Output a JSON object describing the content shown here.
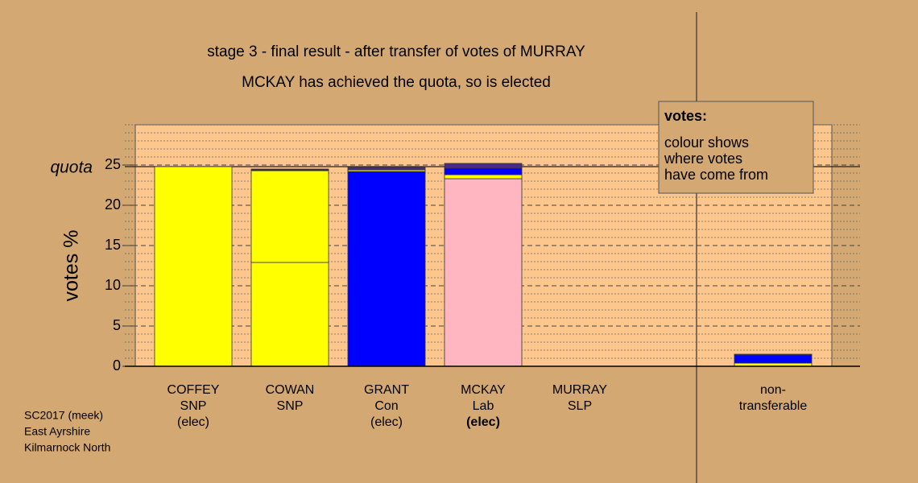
{
  "chart_data": {
    "type": "bar",
    "stacked": true,
    "title": "stage 3 - final result - after transfer of votes of MURRAY",
    "subtitle": "MCKAY has achieved the quota, so is elected",
    "y_label": "votes %",
    "quota_label": "quota",
    "quota": 24.8,
    "categories": [
      [
        "COFFEY",
        "SNP",
        "(elec)"
      ],
      [
        "COWAN",
        "SNP"
      ],
      [
        "GRANT",
        "Con",
        "(elec)"
      ],
      [
        "MCKAY",
        "Lab",
        "(elec)"
      ],
      [
        "MURRAY",
        "SLP"
      ],
      null,
      [
        "non-",
        "transferable"
      ]
    ],
    "highlight_category": 3,
    "series": [
      {
        "values": [
          24.8,
          12.9,
          24.2,
          23.3,
          0,
          null,
          0
        ],
        "colors": [
          "#ffff00",
          "#ffff00",
          "#0000ff",
          "#ffb6c1",
          "#4b2a8a",
          null,
          "#ffff00"
        ]
      },
      {
        "color": "#ffff00",
        "values": [
          0,
          11.4,
          0.2,
          0.5,
          0,
          null,
          0.4
        ]
      },
      {
        "color": "#0000ff",
        "values": [
          0,
          0.1,
          0,
          0.8,
          0,
          null,
          1.0
        ]
      },
      {
        "color": "#4b2a8a",
        "values": [
          0,
          0.1,
          0.3,
          0.6,
          0,
          null,
          0.1
        ]
      }
    ],
    "ylim": [
      0,
      30
    ],
    "yticks": [
      0,
      5,
      10,
      15,
      20,
      25
    ],
    "minor_yticks": [
      1,
      2,
      3,
      4,
      6,
      7,
      8,
      9,
      11,
      12,
      13,
      14,
      16,
      17,
      18,
      19,
      21,
      22,
      23,
      24,
      26,
      27,
      28,
      29,
      30
    ],
    "grid": true,
    "legend_box": {
      "title": "votes:",
      "lines": [
        "colour shows",
        "where votes",
        "have come from"
      ]
    },
    "footer": [
      "SC2017 (meek)",
      "East Ayrshire",
      "Kilmarnock North"
    ]
  }
}
